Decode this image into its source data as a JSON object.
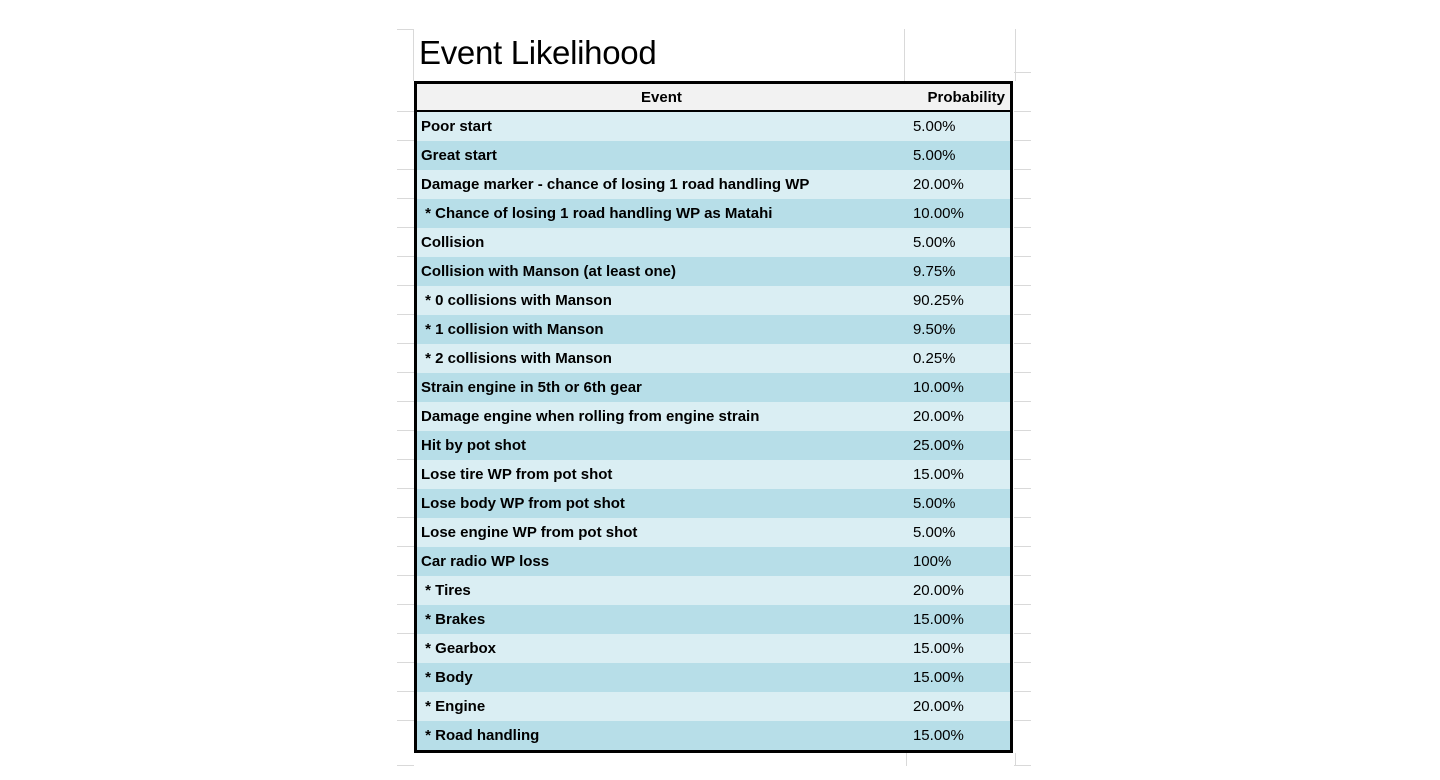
{
  "title": "Event Likelihood",
  "table": {
    "columns": [
      "Event",
      "Probability"
    ],
    "rows": [
      {
        "event": "Poor start",
        "probability": "5.00%"
      },
      {
        "event": "Great start",
        "probability": "5.00%"
      },
      {
        "event": "Damage marker - chance of losing 1 road handling WP",
        "probability": "20.00%"
      },
      {
        "event": " * Chance of losing 1 road handling WP as Matahi",
        "probability": "10.00%"
      },
      {
        "event": "Collision",
        "probability": "5.00%"
      },
      {
        "event": "Collision with Manson (at least one)",
        "probability": "9.75%"
      },
      {
        "event": " * 0 collisions with Manson",
        "probability": "90.25%"
      },
      {
        "event": " * 1 collision with Manson",
        "probability": "9.50%"
      },
      {
        "event": " * 2 collisions with Manson",
        "probability": "0.25%"
      },
      {
        "event": "Strain engine in 5th or 6th gear",
        "probability": "10.00%"
      },
      {
        "event": "Damage engine when rolling from engine strain",
        "probability": "20.00%"
      },
      {
        "event": "Hit by pot shot",
        "probability": "25.00%"
      },
      {
        "event": "Lose tire WP from pot shot",
        "probability": "15.00%"
      },
      {
        "event": "Lose body WP from pot shot",
        "probability": "5.00%"
      },
      {
        "event": "Lose engine WP from pot shot",
        "probability": "5.00%"
      },
      {
        "event": "Car radio WP loss",
        "probability": "100%"
      },
      {
        "event": " * Tires",
        "probability": "20.00%"
      },
      {
        "event": " * Brakes",
        "probability": "15.00%"
      },
      {
        "event": " * Gearbox",
        "probability": "15.00%"
      },
      {
        "event": " * Body",
        "probability": "15.00%"
      },
      {
        "event": " * Engine",
        "probability": "20.00%"
      },
      {
        "event": " * Road handling",
        "probability": "15.00%"
      }
    ]
  },
  "colors": {
    "row_light": "#daeef3",
    "row_dark": "#b7dee8",
    "header_bg": "#f2f2f2",
    "border": "#000000",
    "gridline": "#d9d9d9",
    "text": "#000000"
  }
}
